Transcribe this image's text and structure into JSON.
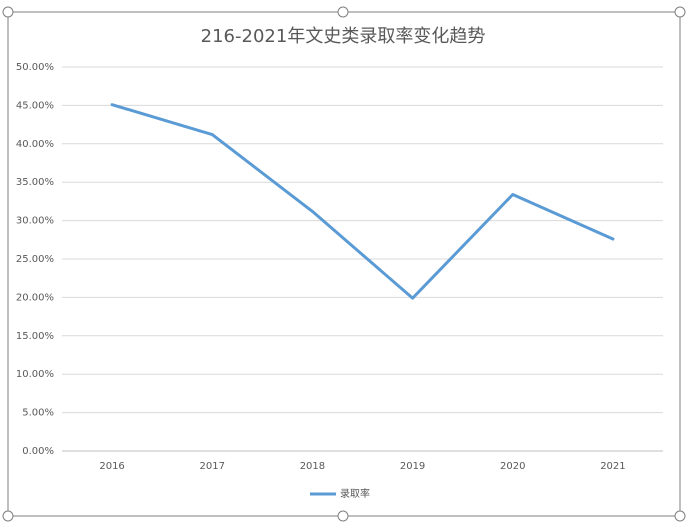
{
  "chart_data": {
    "type": "line",
    "title": "216-2021年文史类录取率变化趋势",
    "categories": [
      "2016",
      "2017",
      "2018",
      "2019",
      "2020",
      "2021"
    ],
    "series": [
      {
        "name": "录取率",
        "color": "#5b9bd5",
        "values": [
          45.1,
          41.2,
          31.2,
          19.9,
          33.4,
          27.6
        ]
      }
    ],
    "ylim": [
      0,
      50
    ],
    "yticks": [
      {
        "value": 0,
        "label": "0.00%"
      },
      {
        "value": 5,
        "label": "5.00%"
      },
      {
        "value": 10,
        "label": "10.00%"
      },
      {
        "value": 15,
        "label": "15.00%"
      },
      {
        "value": 20,
        "label": "20.00%"
      },
      {
        "value": 25,
        "label": "25.00%"
      },
      {
        "value": 30,
        "label": "30.00%"
      },
      {
        "value": 35,
        "label": "35.00%"
      },
      {
        "value": 40,
        "label": "40.00%"
      },
      {
        "value": 45,
        "label": "45.00%"
      },
      {
        "value": 50,
        "label": "50.00%"
      }
    ],
    "grid": true,
    "legend": "bottom"
  }
}
